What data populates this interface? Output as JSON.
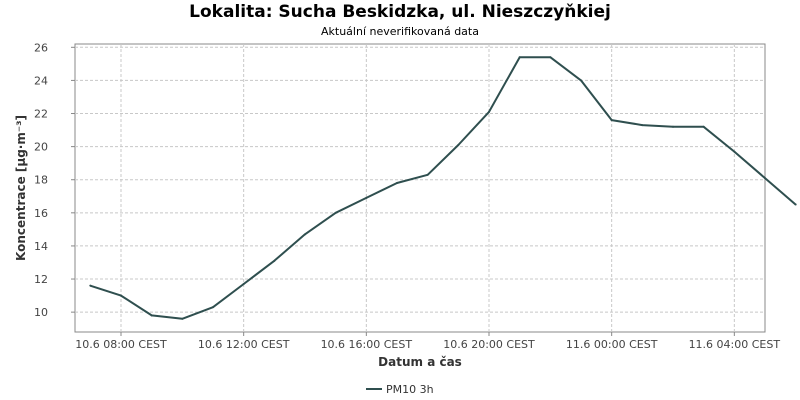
{
  "chart_data": {
    "type": "line",
    "title": "Lokalita: Sucha Beskidzka, ul. Nieszczyňkiej",
    "subtitle": "Aktuální neverifikovaná data",
    "xlabel": "Datum a čas",
    "ylabel": "Koncentrace [µg·m⁻³]",
    "ylim": [
      8.8,
      26.2
    ],
    "yticks": [
      10,
      12,
      14,
      16,
      18,
      20,
      22,
      24,
      26
    ],
    "xlim": [
      "10.6 06:30",
      "11.6 05:00"
    ],
    "xticks": [
      {
        "label": "10.6 08:00 CEST",
        "at": "10.6 08:00"
      },
      {
        "label": "10.6 12:00 CEST",
        "at": "10.6 12:00"
      },
      {
        "label": "10.6 16:00 CEST",
        "at": "10.6 16:00"
      },
      {
        "label": "10.6 20:00 CEST",
        "at": "10.6 20:00"
      },
      {
        "label": "11.6 00:00 CEST",
        "at": "11.6 00:00"
      },
      {
        "label": "11.6 04:00 CEST",
        "at": "11.6 04:00"
      }
    ],
    "grid": true,
    "legend_position": "bottom",
    "series": [
      {
        "name": "PM10 3h",
        "color": "#2f4f4f",
        "points": [
          {
            "x": "10.6 07:00",
            "y": 11.6
          },
          {
            "x": "10.6 08:00",
            "y": 11.0
          },
          {
            "x": "10.6 09:00",
            "y": 9.8
          },
          {
            "x": "10.6 10:00",
            "y": 9.6
          },
          {
            "x": "10.6 11:00",
            "y": 10.3
          },
          {
            "x": "10.6 12:00",
            "y": 11.7
          },
          {
            "x": "10.6 13:00",
            "y": 13.1
          },
          {
            "x": "10.6 14:00",
            "y": 14.7
          },
          {
            "x": "10.6 15:00",
            "y": 16.0
          },
          {
            "x": "10.6 16:00",
            "y": 16.9
          },
          {
            "x": "10.6 17:00",
            "y": 17.8
          },
          {
            "x": "10.6 18:00",
            "y": 18.3
          },
          {
            "x": "10.6 19:00",
            "y": 20.1
          },
          {
            "x": "10.6 20:00",
            "y": 22.1
          },
          {
            "x": "10.6 21:00",
            "y": 25.4
          },
          {
            "x": "10.6 22:00",
            "y": 25.4
          },
          {
            "x": "10.6 23:00",
            "y": 24.0
          },
          {
            "x": "11.6 00:00",
            "y": 21.6
          },
          {
            "x": "11.6 01:00",
            "y": 21.3
          },
          {
            "x": "11.6 02:00",
            "y": 21.2
          },
          {
            "x": "11.6 03:00",
            "y": 21.2
          },
          {
            "x": "11.6 04:00",
            "y": 19.7
          },
          {
            "x": "11.6 05:00",
            "y": 18.1
          },
          {
            "x": "11.6 06:00",
            "y": 16.5
          }
        ]
      }
    ]
  }
}
